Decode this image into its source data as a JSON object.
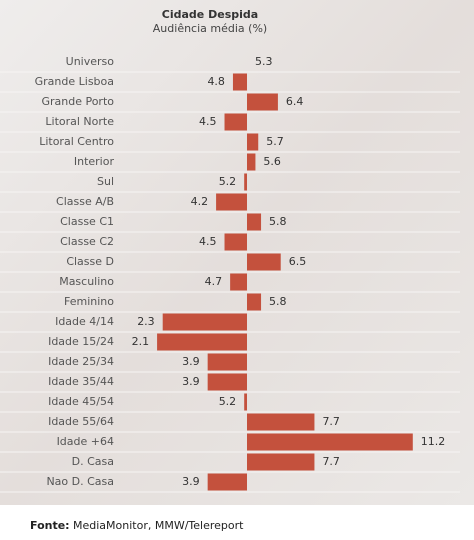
{
  "chart_data": {
    "type": "diverging-bar",
    "title": "Cidade Despida",
    "subtitle": "Audiência média (%)",
    "categories": [
      "Universo",
      "Grande Lisboa",
      "Grande Porto",
      "Litoral Norte",
      "Litoral Centro",
      "Interior",
      "Sul",
      "Classe A/B",
      "Classe C1",
      "Classe C2",
      "Classe D",
      "Masculino",
      "Feminino",
      "Idade 4/14",
      "Idade 15/24",
      "Idade 25/34",
      "Idade 35/44",
      "Idade 45/54",
      "Idade 55/64",
      "Idade +64",
      "D. Casa",
      "Nao D. Casa"
    ],
    "values": [
      5.3,
      4.8,
      6.4,
      4.5,
      5.7,
      5.6,
      5.2,
      4.2,
      5.8,
      4.5,
      6.5,
      4.7,
      5.8,
      2.3,
      2.1,
      3.9,
      3.9,
      5.2,
      7.7,
      11.2,
      7.7,
      3.9
    ],
    "color": "#c4513d",
    "source_label": "Fonte:",
    "source": "MediaMonitor, MMW/Telereport"
  }
}
